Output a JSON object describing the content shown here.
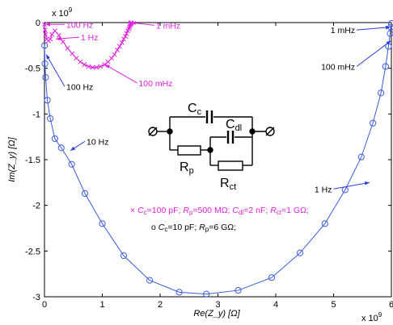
{
  "chart_data": {
    "type": "scatter",
    "xlabel": "Re(Z_y) [Ω]",
    "ylabel": "Im(Z_y) [Ω]",
    "xscale_label": "x 10",
    "xscale_exp": "9",
    "yscale_label": "x 10",
    "yscale_exp": "9",
    "xlim": [
      0,
      6
    ],
    "ylim": [
      -3,
      0
    ],
    "xticks": [
      "0",
      "1",
      "2",
      "3",
      "4",
      "5",
      "6"
    ],
    "yticks": [
      "0",
      "-0.5",
      "-1",
      "-1.5",
      "-2",
      "-2.5",
      "-3"
    ],
    "grid": false,
    "series": [
      {
        "name": "o C_c=10 pF; R_p=6 GΩ;",
        "color": "#3b5bdb",
        "marker": "circle",
        "x": [
          0.002,
          0.008,
          0.02,
          0.05,
          0.1,
          0.18,
          0.29,
          0.47,
          0.7,
          1.0,
          1.37,
          1.82,
          2.33,
          2.8,
          3.35,
          3.93,
          4.42,
          4.85,
          5.2,
          5.48,
          5.68,
          5.82,
          5.9,
          5.95,
          5.98,
          5.99,
          6.0
        ],
        "y": [
          -0.25,
          -0.45,
          -0.6,
          -0.85,
          -1.05,
          -1.27,
          -1.37,
          -1.55,
          -1.87,
          -2.2,
          -2.55,
          -2.82,
          -2.95,
          -2.97,
          -2.93,
          -2.79,
          -2.52,
          -2.2,
          -1.83,
          -1.47,
          -1.1,
          -0.77,
          -0.48,
          -0.26,
          -0.12,
          -0.05,
          -0.01
        ]
      },
      {
        "name": "× C_c=100 pF; R_p=500 MΩ; C_dl=2 nF; R_ct=1 GΩ;",
        "color": "#e020e0",
        "marker": "x",
        "x": [
          0.0,
          0.01,
          0.02,
          0.04,
          0.07,
          0.1,
          0.13,
          0.18,
          0.25,
          0.32,
          0.4,
          0.48,
          0.55,
          0.62,
          0.69,
          0.76,
          0.83,
          0.9,
          0.97,
          1.04,
          1.1,
          1.16,
          1.21,
          1.26,
          1.3,
          1.34,
          1.37,
          1.4,
          1.42,
          1.44,
          1.46,
          1.47,
          1.48,
          1.49,
          1.49,
          1.5,
          1.5
        ],
        "y": [
          -0.02,
          -0.08,
          -0.13,
          -0.18,
          -0.2,
          -0.18,
          -0.13,
          -0.09,
          -0.14,
          -0.21,
          -0.28,
          -0.34,
          -0.39,
          -0.43,
          -0.46,
          -0.48,
          -0.49,
          -0.49,
          -0.48,
          -0.46,
          -0.43,
          -0.39,
          -0.35,
          -0.3,
          -0.26,
          -0.22,
          -0.18,
          -0.15,
          -0.12,
          -0.09,
          -0.07,
          -0.05,
          -0.035,
          -0.02,
          -0.01,
          -0.005,
          0.0
        ]
      }
    ],
    "annotations": [
      {
        "text": "100 Hz",
        "color": "#e020e0",
        "at": [
          0.02,
          -0.02
        ],
        "label_at": [
          0.35,
          -0.02
        ]
      },
      {
        "text": "1 Hz",
        "color": "#e020e0",
        "at": [
          0.2,
          -0.18
        ],
        "label_at": [
          0.6,
          -0.16
        ]
      },
      {
        "text": "1 mHz",
        "color": "#e020e0",
        "at": [
          1.5,
          0.0
        ],
        "label_at": [
          1.9,
          -0.03
        ]
      },
      {
        "text": "100 mHz",
        "color": "#e020e0",
        "at": [
          1.05,
          -0.46
        ],
        "label_at": [
          1.6,
          -0.66
        ]
      },
      {
        "text": "100 Hz",
        "color": "#000000",
        "at": [
          0.03,
          -0.35
        ],
        "label_at": [
          0.35,
          -0.7
        ]
      },
      {
        "text": "10 Hz",
        "color": "#000000",
        "at": [
          0.45,
          -1.4
        ],
        "label_at": [
          0.7,
          -1.3
        ]
      },
      {
        "text": "1 mHz",
        "color": "#000000",
        "at": [
          5.98,
          -0.05
        ],
        "label_at": [
          5.4,
          -0.08
        ]
      },
      {
        "text": "100 mHz",
        "color": "#000000",
        "at": [
          5.99,
          -0.2
        ],
        "label_at": [
          5.4,
          -0.48
        ]
      },
      {
        "text": "1 Hz",
        "color": "#000000",
        "at": [
          5.62,
          -1.75
        ],
        "label_at": [
          5.0,
          -1.82
        ]
      }
    ],
    "circuit": {
      "Cc": "C",
      "Cc_sub": "c",
      "Cdl": "C",
      "Cdl_sub": "dl",
      "Rp": "R",
      "Rp_sub": "p",
      "Rct": "R",
      "Rct_sub": "ct"
    },
    "legend": {
      "line1": {
        "marker": "×",
        "parts": [
          "C",
          "c",
          "=100 pF;",
          "R",
          "p",
          "=500 MΩ;",
          "C",
          "dl",
          "=2 nF;",
          "R",
          "ct",
          "=1 GΩ;"
        ]
      },
      "line2": {
        "marker": "o",
        "parts": [
          "C",
          "c",
          "=10 pF;",
          "R",
          "p",
          "=6 GΩ;"
        ]
      }
    }
  }
}
